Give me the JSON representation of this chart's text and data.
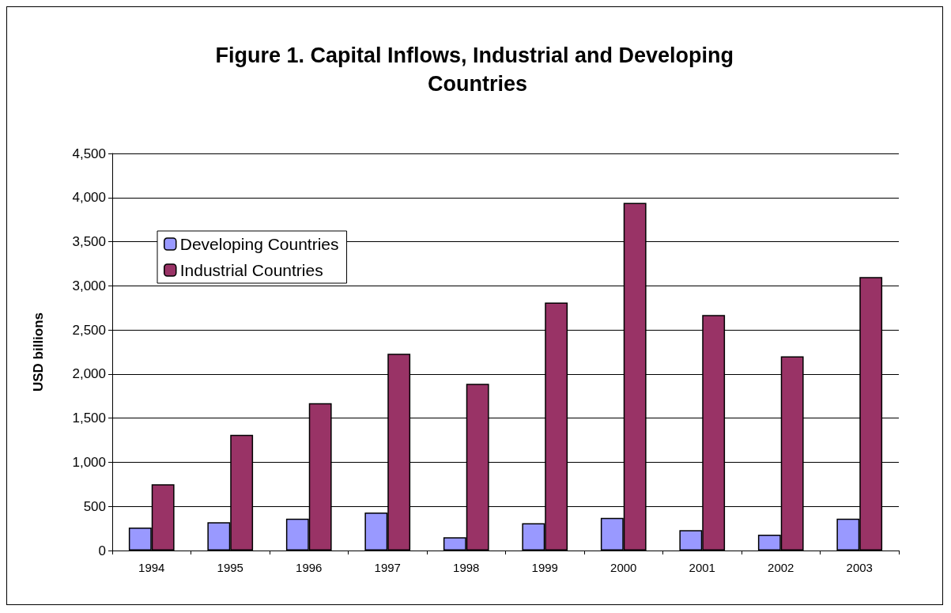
{
  "chart_data": {
    "type": "bar",
    "title": "Figure 1. Capital Inflows, Industrial and Developing Countries",
    "ylabel": "USD billions",
    "categories": [
      "1994",
      "1995",
      "1996",
      "1997",
      "1998",
      "1999",
      "2000",
      "2001",
      "2002",
      "2003"
    ],
    "series": [
      {
        "name": "Developing Countries",
        "color": "#9999ff",
        "values": [
          260,
          320,
          360,
          430,
          150,
          310,
          370,
          230,
          180,
          360
        ]
      },
      {
        "name": "Industrial Countries",
        "color": "#993366",
        "values": [
          750,
          1310,
          1670,
          2230,
          1890,
          2810,
          3940,
          2670,
          2200,
          3100
        ]
      }
    ],
    "ylim": [
      0,
      4500
    ],
    "yticks": [
      0,
      500,
      {
        "value": 1000,
        "label": "1,000"
      },
      {
        "value": 1500,
        "label": "1,500"
      },
      {
        "value": 2000,
        "label": "2,000"
      },
      {
        "value": 2500,
        "label": "2,500"
      },
      {
        "value": 3000,
        "label": "3,000"
      },
      {
        "value": 3500,
        "label": "3,500"
      },
      {
        "value": 4000,
        "label": "4,000"
      },
      {
        "value": 4500,
        "label": "4,500"
      }
    ],
    "grid": "y",
    "legend": "top left"
  }
}
